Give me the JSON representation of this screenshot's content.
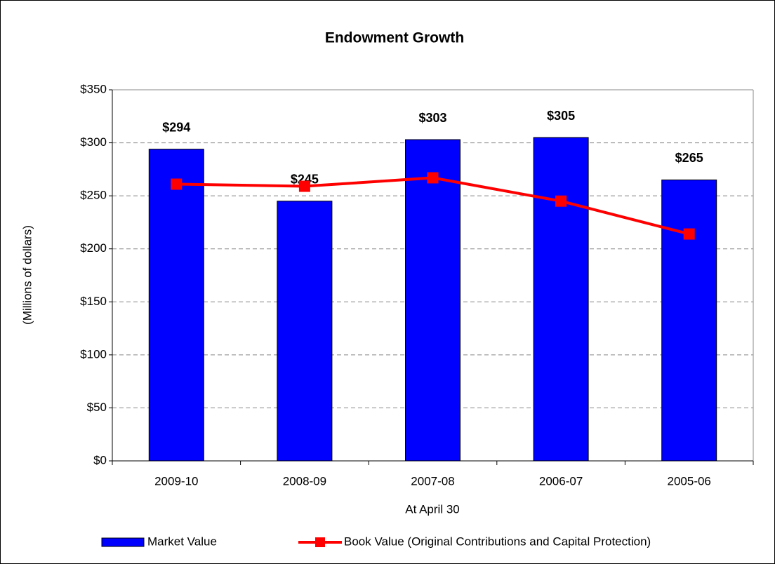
{
  "chart_data": {
    "type": "bar",
    "title": "Endowment Growth",
    "x_label": "At April 30",
    "y_label": "(Millions of dollars)",
    "categories": [
      "2009-10",
      "2008-09",
      "2007-08",
      "2006-07",
      "2005-06"
    ],
    "series": [
      {
        "name": "Market Value",
        "type": "bar",
        "color": "#0000ff",
        "values": [
          294,
          245,
          303,
          305,
          265
        ],
        "value_labels": [
          "$294",
          "$245",
          "$303",
          "$305",
          "$265"
        ]
      },
      {
        "name": "Book Value (Original Contributions and Capital Protection)",
        "type": "line",
        "color": "#ff0000",
        "values": [
          261,
          259,
          267,
          245,
          214
        ]
      }
    ],
    "ylim": [
      0,
      350
    ],
    "yticks": [
      {
        "value": 0,
        "label": "$0"
      },
      {
        "value": 50,
        "label": "$50"
      },
      {
        "value": 100,
        "label": "$100"
      },
      {
        "value": 150,
        "label": "$150"
      },
      {
        "value": 200,
        "label": "$200"
      },
      {
        "value": 250,
        "label": "$250"
      },
      {
        "value": 300,
        "label": "$300"
      },
      {
        "value": 350,
        "label": "$350"
      }
    ],
    "grid": true,
    "legend": "bottom"
  }
}
